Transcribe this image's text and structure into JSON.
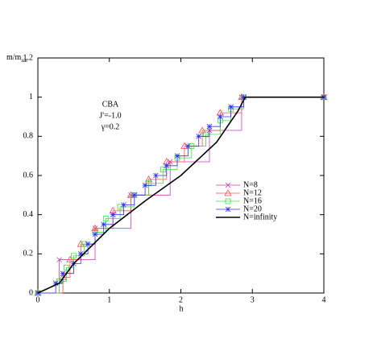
{
  "chart_data": {
    "type": "step",
    "xlabel": "h",
    "ylabel": [
      "m/m",
      "sat"
    ],
    "annotations": [
      "CBA",
      "J'=-1.0",
      "γ=0.2"
    ],
    "xlim": [
      0,
      4
    ],
    "xticks": [
      0,
      1,
      2,
      3,
      4
    ],
    "ylim": [
      0,
      1.2
    ],
    "yticks": [
      0,
      0.2,
      0.4,
      0.6,
      0.8,
      1,
      1.2
    ],
    "legend": "center-right",
    "series": [
      {
        "name": "N=8",
        "color": "#c040c0",
        "marker": "x",
        "x": [
          0,
          0.3,
          0.8,
          1.3,
          1.85,
          2.4,
          2.85,
          4
        ],
        "values": [
          0,
          0.17,
          0.33,
          0.5,
          0.67,
          0.83,
          1,
          1
        ]
      },
      {
        "name": "N=12",
        "color": "#ff5050",
        "marker": "triangle",
        "x": [
          0,
          0.35,
          0.45,
          0.6,
          0.8,
          1.05,
          1.3,
          1.55,
          1.8,
          2.05,
          2.3,
          2.55,
          2.85,
          4
        ],
        "values": [
          0,
          0.08,
          0.17,
          0.25,
          0.33,
          0.42,
          0.5,
          0.58,
          0.67,
          0.75,
          0.83,
          0.92,
          1,
          1
        ]
      },
      {
        "name": "N=16",
        "color": "#40e040",
        "marker": "square",
        "x": [
          0,
          0.3,
          0.4,
          0.5,
          0.65,
          0.8,
          0.95,
          1.15,
          1.35,
          1.55,
          1.75,
          1.95,
          2.15,
          2.35,
          2.55,
          2.7,
          2.88,
          4
        ],
        "values": [
          0,
          0.06,
          0.13,
          0.19,
          0.25,
          0.31,
          0.38,
          0.44,
          0.5,
          0.56,
          0.63,
          0.69,
          0.75,
          0.81,
          0.88,
          0.94,
          1,
          1
        ]
      },
      {
        "name": "N=20",
        "color": "#3030ff",
        "marker": "star",
        "x": [
          0,
          0.25,
          0.35,
          0.5,
          0.6,
          0.7,
          0.8,
          0.92,
          1.05,
          1.2,
          1.35,
          1.5,
          1.65,
          1.8,
          1.95,
          2.1,
          2.25,
          2.4,
          2.55,
          2.7,
          2.88,
          4
        ],
        "values": [
          0,
          0.05,
          0.1,
          0.15,
          0.2,
          0.25,
          0.3,
          0.35,
          0.4,
          0.45,
          0.5,
          0.55,
          0.6,
          0.65,
          0.7,
          0.75,
          0.8,
          0.85,
          0.9,
          0.95,
          1,
          1
        ]
      },
      {
        "name": "N=infinity",
        "color": "#000000",
        "marker": "none",
        "style": "line",
        "x": [
          0,
          0.3,
          0.5,
          1.0,
          1.5,
          2.0,
          2.5,
          2.8,
          2.9,
          4
        ],
        "values": [
          0,
          0.05,
          0.15,
          0.33,
          0.47,
          0.6,
          0.77,
          0.93,
          1,
          1
        ]
      }
    ]
  }
}
